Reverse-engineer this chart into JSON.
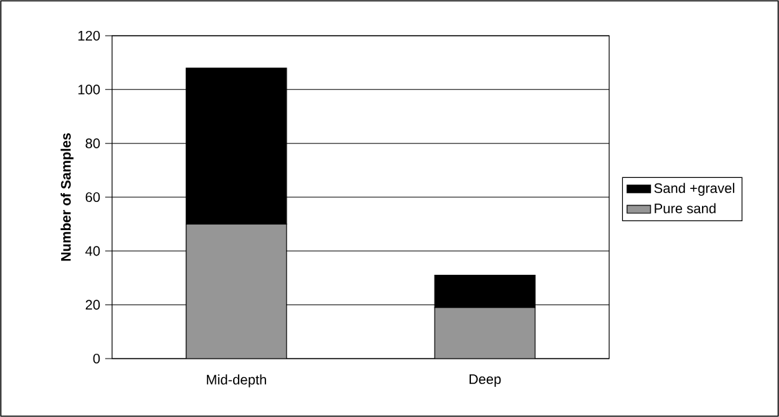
{
  "chart_data": {
    "type": "bar",
    "stacked": true,
    "ylabel": "Number of Samples",
    "categories": [
      "Mid-depth",
      "Deep"
    ],
    "series": [
      {
        "name": "Pure sand",
        "color": "#969696",
        "values": [
          50,
          19
        ]
      },
      {
        "name": "Sand +gravel",
        "color": "#000000",
        "values": [
          58,
          12
        ]
      }
    ],
    "ylim": [
      0,
      120
    ],
    "yticks": [
      0,
      20,
      40,
      60,
      80,
      100,
      120
    ],
    "grid": "y",
    "legend": "right"
  }
}
